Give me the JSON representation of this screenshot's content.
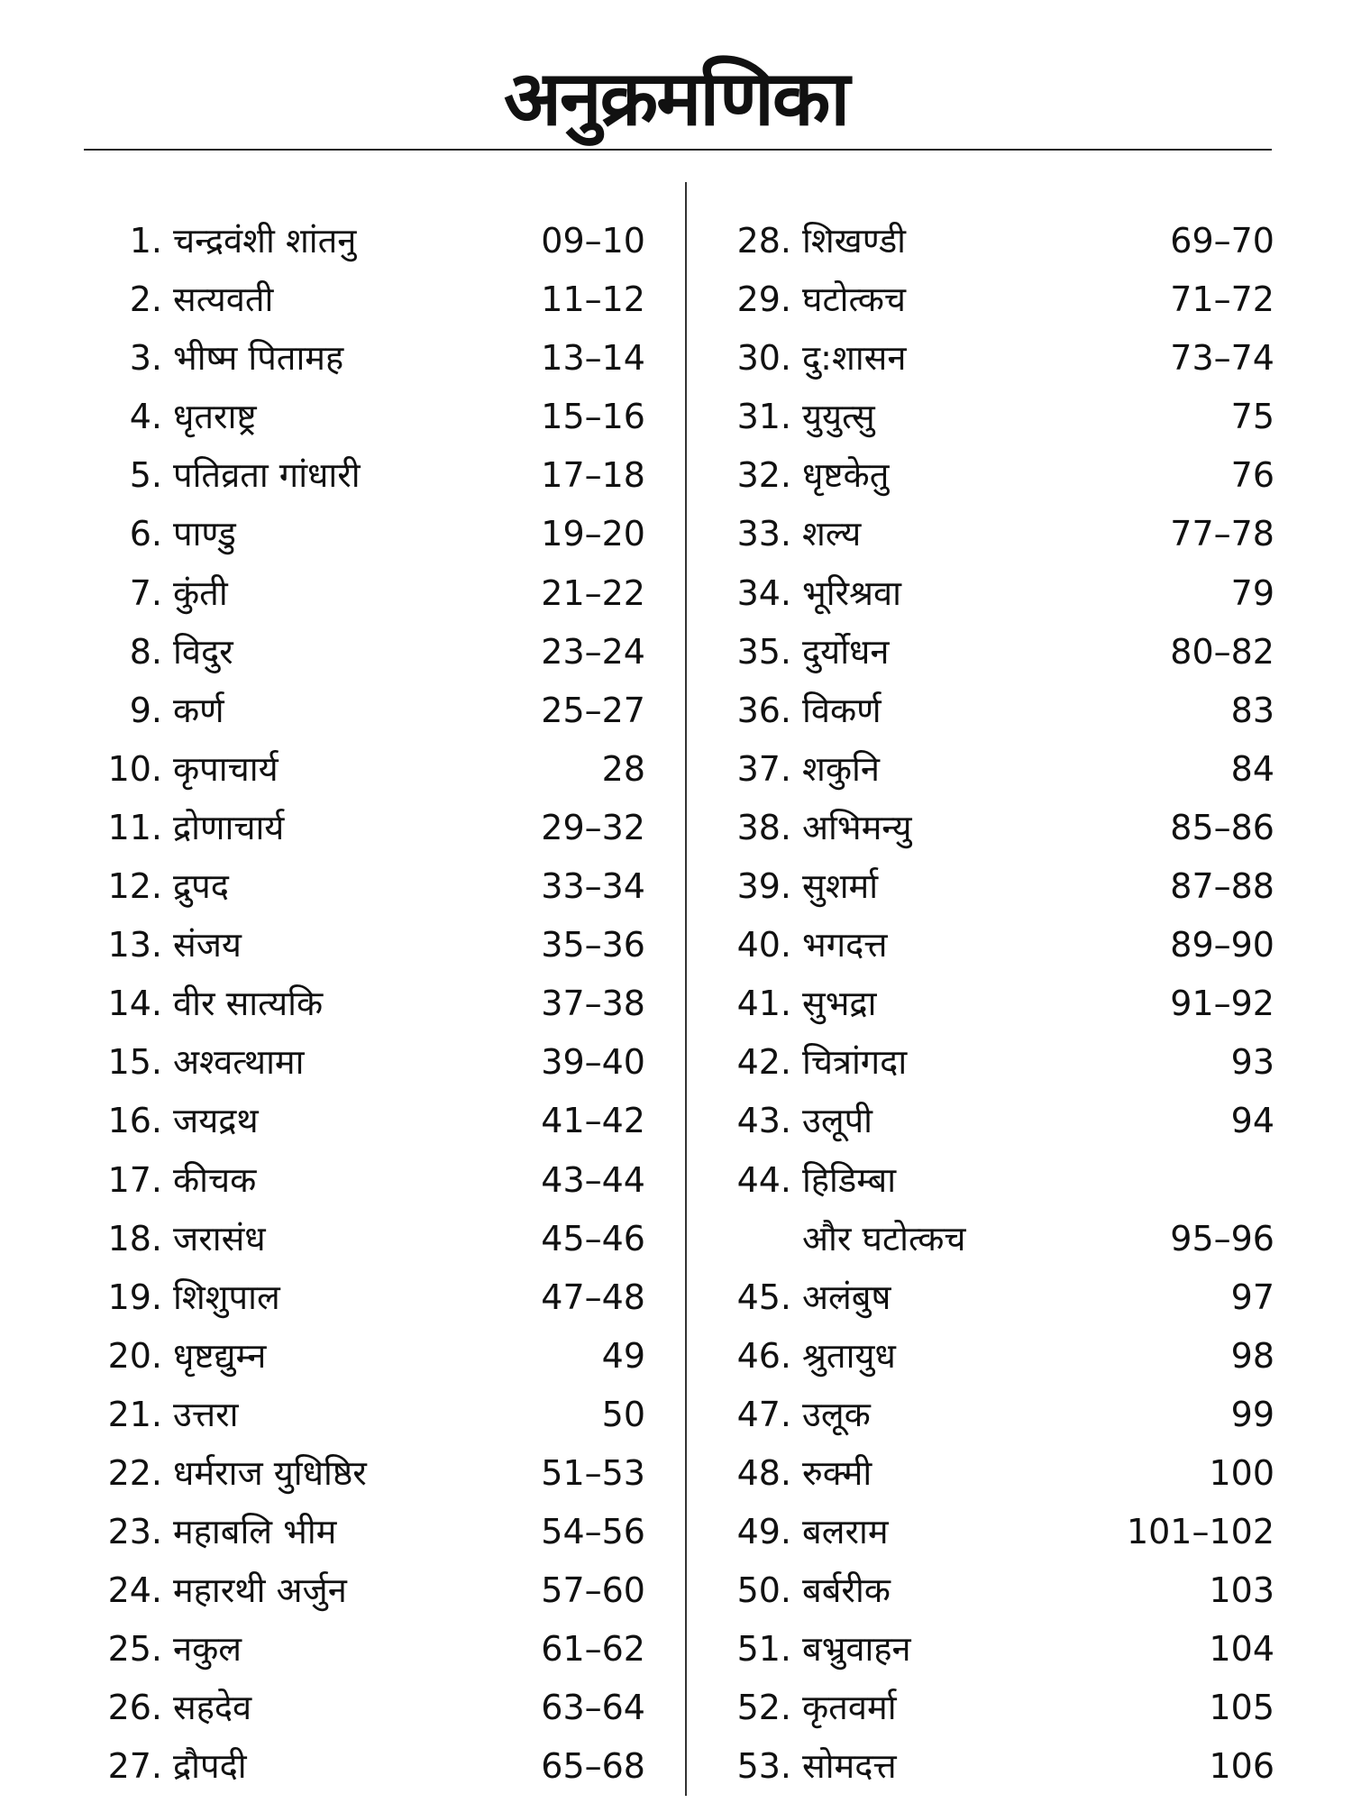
{
  "title": "अनुक्रमणिका",
  "left": [
    {
      "num": "1.",
      "name": "चन्द्रवंशी शांतनु",
      "pages": "09–10"
    },
    {
      "num": "2.",
      "name": "सत्यवती",
      "pages": "11–12"
    },
    {
      "num": "3.",
      "name": "भीष्म पितामह",
      "pages": "13–14"
    },
    {
      "num": "4.",
      "name": "धृतराष्ट्र",
      "pages": "15–16"
    },
    {
      "num": "5.",
      "name": "पतिव्रता गांधारी",
      "pages": "17–18"
    },
    {
      "num": "6.",
      "name": "पाण्डु",
      "pages": "19–20"
    },
    {
      "num": "7.",
      "name": "कुंती",
      "pages": "21–22"
    },
    {
      "num": "8.",
      "name": "विदुर",
      "pages": "23–24"
    },
    {
      "num": "9.",
      "name": "कर्ण",
      "pages": "25–27"
    },
    {
      "num": "10.",
      "name": "कृपाचार्य",
      "pages": "28"
    },
    {
      "num": "11.",
      "name": "द्रोणाचार्य",
      "pages": "29–32"
    },
    {
      "num": "12.",
      "name": "द्रुपद",
      "pages": "33–34"
    },
    {
      "num": "13.",
      "name": "संजय",
      "pages": "35–36"
    },
    {
      "num": "14.",
      "name": "वीर सात्यकि",
      "pages": "37–38"
    },
    {
      "num": "15.",
      "name": "अश्वत्थामा",
      "pages": "39–40"
    },
    {
      "num": "16.",
      "name": "जयद्रथ",
      "pages": "41–42"
    },
    {
      "num": "17.",
      "name": "कीचक",
      "pages": "43–44"
    },
    {
      "num": "18.",
      "name": "जरासंध",
      "pages": "45–46"
    },
    {
      "num": "19.",
      "name": "शिशुपाल",
      "pages": "47–48"
    },
    {
      "num": "20.",
      "name": "धृष्टद्युम्न",
      "pages": "49"
    },
    {
      "num": "21.",
      "name": "उत्तरा",
      "pages": "50"
    },
    {
      "num": "22.",
      "name": "धर्मराज युधिष्ठिर",
      "pages": "51–53"
    },
    {
      "num": "23.",
      "name": "महाबलि भीम",
      "pages": "54–56"
    },
    {
      "num": "24.",
      "name": "महारथी अर्जुन",
      "pages": "57–60"
    },
    {
      "num": "25.",
      "name": "नकुल",
      "pages": "61–62"
    },
    {
      "num": "26.",
      "name": "सहदेव",
      "pages": "63–64"
    },
    {
      "num": "27.",
      "name": "द्रौपदी",
      "pages": "65–68"
    }
  ],
  "right": [
    {
      "num": "28.",
      "name": "शिखण्डी",
      "pages": "69–70"
    },
    {
      "num": "29.",
      "name": "घटोत्कच",
      "pages": "71–72"
    },
    {
      "num": "30.",
      "name": "दु:शासन",
      "pages": "73–74"
    },
    {
      "num": "31.",
      "name": "युयुत्सु",
      "pages": "75"
    },
    {
      "num": "32.",
      "name": "धृष्टकेतु",
      "pages": "76"
    },
    {
      "num": "33.",
      "name": "शल्य",
      "pages": "77–78"
    },
    {
      "num": "34.",
      "name": "भूरिश्रवा",
      "pages": "79"
    },
    {
      "num": "35.",
      "name": "दुर्योधन",
      "pages": "80–82"
    },
    {
      "num": "36.",
      "name": "विकर्ण",
      "pages": "83"
    },
    {
      "num": "37.",
      "name": "शकुनि",
      "pages": "84"
    },
    {
      "num": "38.",
      "name": "अभिमन्यु",
      "pages": "85–86"
    },
    {
      "num": "39.",
      "name": "सुशर्मा",
      "pages": "87–88"
    },
    {
      "num": "40.",
      "name": "भगदत्त",
      "pages": "89–90"
    },
    {
      "num": "41.",
      "name": "सुभद्रा",
      "pages": "91–92"
    },
    {
      "num": "42.",
      "name": "चित्रांगदा",
      "pages": "93"
    },
    {
      "num": "43.",
      "name": "उलूपी",
      "pages": "94"
    },
    {
      "num": "44.",
      "name": "हिडिम्बा",
      "pages": ""
    },
    {
      "num": "",
      "name": "और घटोत्कच",
      "pages": "95–96"
    },
    {
      "num": "45.",
      "name": "अलंबुष",
      "pages": "97"
    },
    {
      "num": "46.",
      "name": "श्रुतायुध",
      "pages": "98"
    },
    {
      "num": "47.",
      "name": "उलूक",
      "pages": "99"
    },
    {
      "num": "48.",
      "name": "रुक्मी",
      "pages": "100"
    },
    {
      "num": "49.",
      "name": "बलराम",
      "pages": "101–102"
    },
    {
      "num": "50.",
      "name": "बर्बरीक",
      "pages": "103"
    },
    {
      "num": "51.",
      "name": "बभ्रुवाहन",
      "pages": "104"
    },
    {
      "num": "52.",
      "name": "कृतवर्मा",
      "pages": "105"
    },
    {
      "num": "53.",
      "name": "सोमदत्त",
      "pages": "106"
    }
  ]
}
